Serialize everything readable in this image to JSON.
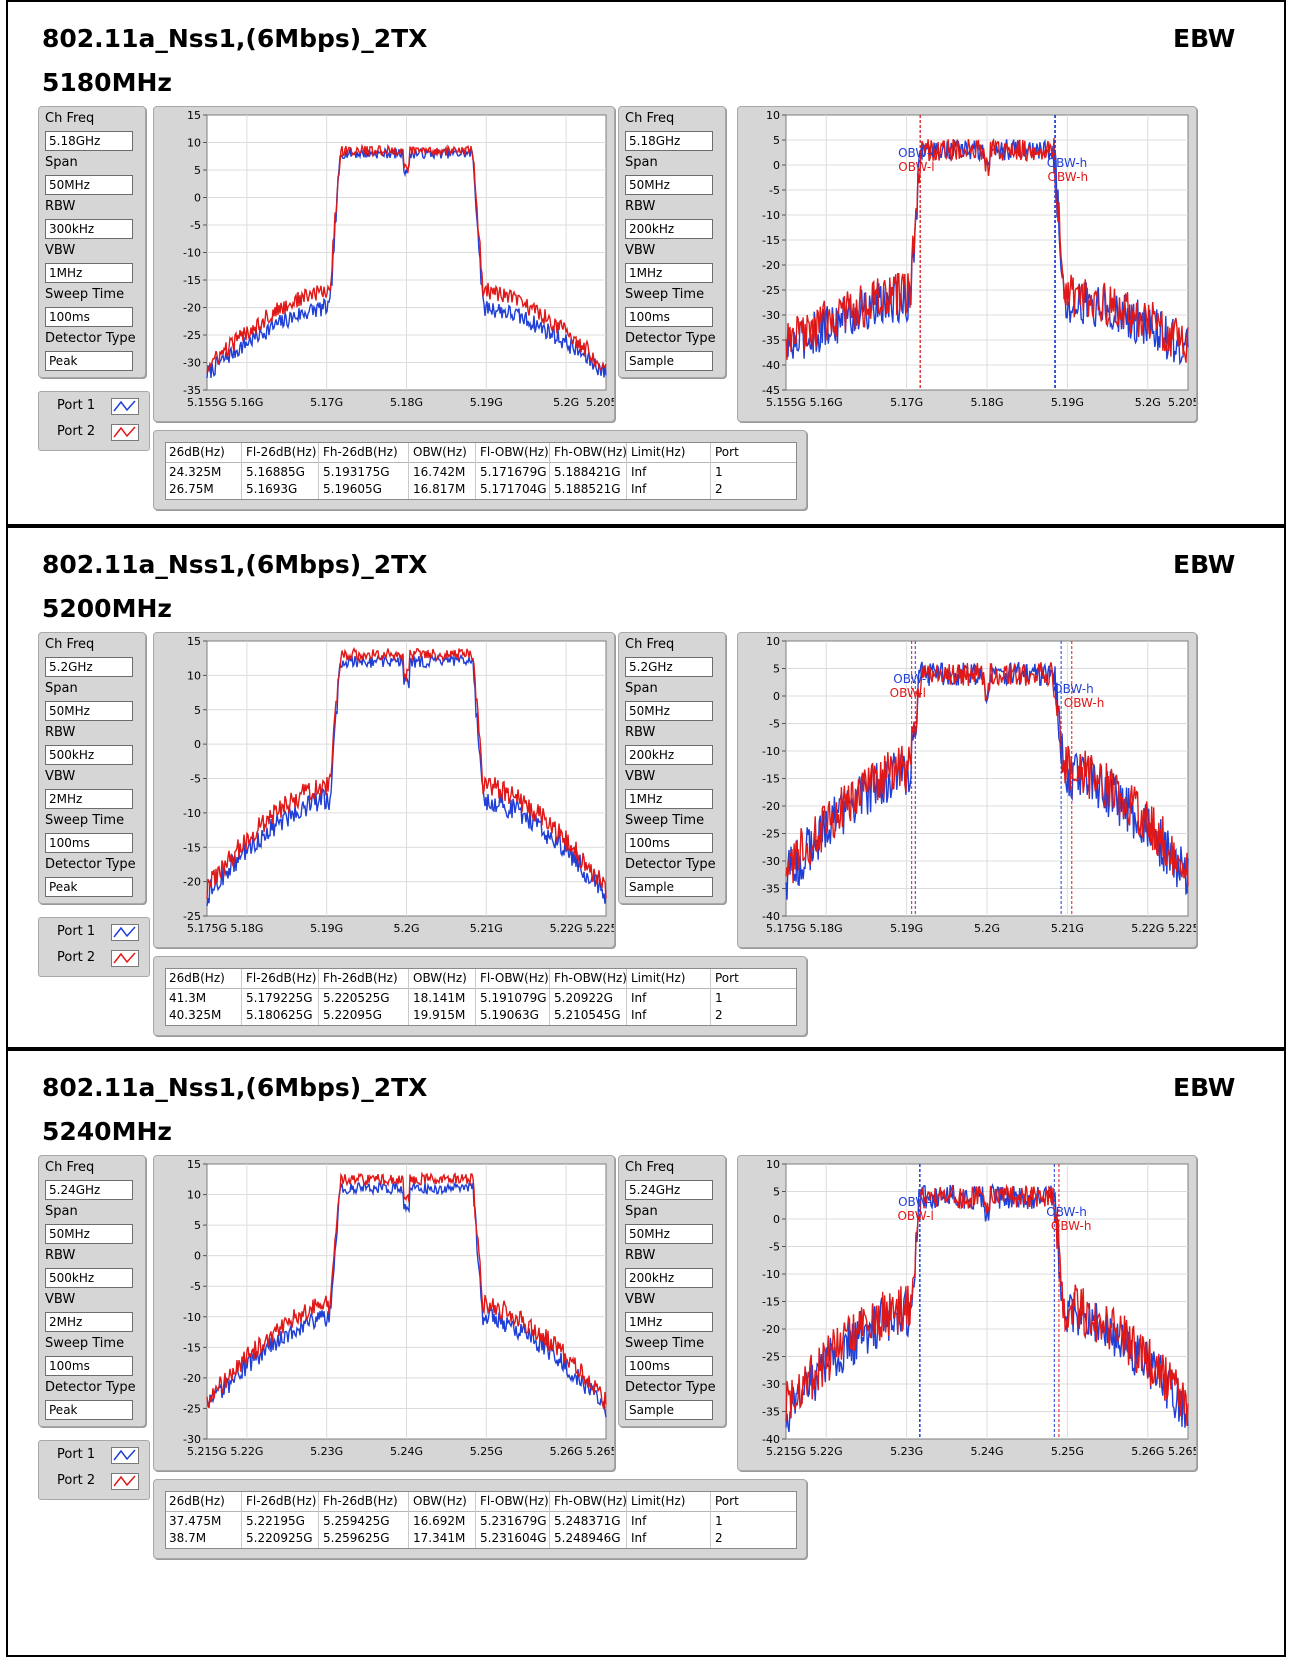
{
  "ebw_label": "EBW",
  "legend": [
    {
      "label": "Port 1",
      "color": "#1f3fd6"
    },
    {
      "label": "Port 2",
      "color": "#e01818"
    }
  ],
  "table_headers": [
    "26dB(Hz)",
    "Fl-26dB(Hz)",
    "Fh-26dB(Hz)",
    "OBW(Hz)",
    "Fl-OBW(Hz)",
    "Fh-OBW(Hz)",
    "Limit(Hz)",
    "Port"
  ],
  "sections": [
    {
      "title": "802.11a_Nss1,(6Mbps)_2TX",
      "freq": "5180MHz",
      "left_settings": [
        {
          "label": "Ch Freq",
          "value": "5.18GHz"
        },
        {
          "label": "Span",
          "value": "50MHz"
        },
        {
          "label": "RBW",
          "value": "300kHz"
        },
        {
          "label": "VBW",
          "value": "1MHz"
        },
        {
          "label": "Sweep Time",
          "value": "100ms"
        },
        {
          "label": "Detector Type",
          "value": "Peak"
        }
      ],
      "right_settings": [
        {
          "label": "Ch Freq",
          "value": "5.18GHz"
        },
        {
          "label": "Span",
          "value": "50MHz"
        },
        {
          "label": "RBW",
          "value": "200kHz"
        },
        {
          "label": "VBW",
          "value": "1MHz"
        },
        {
          "label": "Sweep Time",
          "value": "100ms"
        },
        {
          "label": "Detector Type",
          "value": "Sample"
        }
      ],
      "table_rows": [
        [
          "24.325M",
          "5.16885G",
          "5.193175G",
          "16.742M",
          "5.171679G",
          "5.188421G",
          "Inf",
          "1"
        ],
        [
          "26.75M",
          "5.1693G",
          "5.19605G",
          "16.817M",
          "5.171704G",
          "5.188521G",
          "Inf",
          "2"
        ]
      ]
    },
    {
      "title": "802.11a_Nss1,(6Mbps)_2TX",
      "freq": "5200MHz",
      "left_settings": [
        {
          "label": "Ch Freq",
          "value": "5.2GHz"
        },
        {
          "label": "Span",
          "value": "50MHz"
        },
        {
          "label": "RBW",
          "value": "500kHz"
        },
        {
          "label": "VBW",
          "value": "2MHz"
        },
        {
          "label": "Sweep Time",
          "value": "100ms"
        },
        {
          "label": "Detector Type",
          "value": "Peak"
        }
      ],
      "right_settings": [
        {
          "label": "Ch Freq",
          "value": "5.2GHz"
        },
        {
          "label": "Span",
          "value": "50MHz"
        },
        {
          "label": "RBW",
          "value": "200kHz"
        },
        {
          "label": "VBW",
          "value": "1MHz"
        },
        {
          "label": "Sweep Time",
          "value": "100ms"
        },
        {
          "label": "Detector Type",
          "value": "Sample"
        }
      ],
      "table_rows": [
        [
          "41.3M",
          "5.179225G",
          "5.220525G",
          "18.141M",
          "5.191079G",
          "5.20922G",
          "Inf",
          "1"
        ],
        [
          "40.325M",
          "5.180625G",
          "5.22095G",
          "19.915M",
          "5.19063G",
          "5.210545G",
          "Inf",
          "2"
        ]
      ]
    },
    {
      "title": "802.11a_Nss1,(6Mbps)_2TX",
      "freq": "5240MHz",
      "left_settings": [
        {
          "label": "Ch Freq",
          "value": "5.24GHz"
        },
        {
          "label": "Span",
          "value": "50MHz"
        },
        {
          "label": "RBW",
          "value": "500kHz"
        },
        {
          "label": "VBW",
          "value": "2MHz"
        },
        {
          "label": "Sweep Time",
          "value": "100ms"
        },
        {
          "label": "Detector Type",
          "value": "Peak"
        }
      ],
      "right_settings": [
        {
          "label": "Ch Freq",
          "value": "5.24GHz"
        },
        {
          "label": "Span",
          "value": "50MHz"
        },
        {
          "label": "RBW",
          "value": "200kHz"
        },
        {
          "label": "VBW",
          "value": "1MHz"
        },
        {
          "label": "Sweep Time",
          "value": "100ms"
        },
        {
          "label": "Detector Type",
          "value": "Sample"
        }
      ],
      "table_rows": [
        [
          "37.475M",
          "5.22195G",
          "5.259425G",
          "16.692M",
          "5.231679G",
          "5.248371G",
          "Inf",
          "1"
        ],
        [
          "38.7M",
          "5.220925G",
          "5.259625G",
          "17.341M",
          "5.231604G",
          "5.248946G",
          "Inf",
          "2"
        ]
      ]
    }
  ],
  "chart_data": [
    {
      "type": "line",
      "chart": "26dB",
      "center_ghz": 5.18,
      "x_range": [
        5.155,
        5.205
      ],
      "x_ticks": [
        "5.155G",
        "5.16G",
        "5.17G",
        "5.18G",
        "5.19G",
        "5.2G",
        "5.205G"
      ],
      "ylim": [
        -35,
        15
      ],
      "y_ticks": [
        15,
        10,
        5,
        0,
        -5,
        -10,
        -15,
        -20,
        -25,
        -30,
        -35
      ],
      "series": [
        {
          "name": "Port 1",
          "plateau": 8,
          "edge": -20,
          "skirt": -32
        },
        {
          "name": "Port 2",
          "plateau": 8.5,
          "edge": -17,
          "skirt": -31
        }
      ]
    },
    {
      "type": "line",
      "chart": "OBW",
      "center_ghz": 5.18,
      "x_range": [
        5.155,
        5.205
      ],
      "x_ticks": [
        "5.155G",
        "5.16G",
        "5.17G",
        "5.18G",
        "5.19G",
        "5.2G",
        "5.205G"
      ],
      "ylim": [
        -45,
        10
      ],
      "y_ticks": [
        10,
        5,
        0,
        -5,
        -10,
        -15,
        -20,
        -25,
        -30,
        -35,
        -40,
        -45
      ],
      "markers": {
        "Port 1": [
          5.171679,
          5.188421
        ],
        "Port 2": [
          5.171704,
          5.188521
        ]
      },
      "marker_labels": [
        "OBW-l",
        "OBW-h"
      ],
      "series": [
        {
          "name": "Port 1",
          "plateau": 3,
          "edge": -27,
          "skirt": -37
        },
        {
          "name": "Port 2",
          "plateau": 3,
          "edge": -26,
          "skirt": -36
        }
      ]
    },
    {
      "type": "line",
      "chart": "26dB",
      "center_ghz": 5.2,
      "x_range": [
        5.175,
        5.225
      ],
      "x_ticks": [
        "5.175G",
        "5.18G",
        "5.19G",
        "5.2G",
        "5.21G",
        "5.22G",
        "5.225G"
      ],
      "ylim": [
        -25,
        15
      ],
      "y_ticks": [
        15,
        10,
        5,
        0,
        -5,
        -10,
        -15,
        -20,
        -25
      ],
      "series": [
        {
          "name": "Port 1",
          "plateau": 12,
          "edge": -8,
          "skirt": -22
        },
        {
          "name": "Port 2",
          "plateau": 13,
          "edge": -6,
          "skirt": -21
        }
      ]
    },
    {
      "type": "line",
      "chart": "OBW",
      "center_ghz": 5.2,
      "x_range": [
        5.175,
        5.225
      ],
      "x_ticks": [
        "5.175G",
        "5.18G",
        "5.19G",
        "5.2G",
        "5.21G",
        "5.22G",
        "5.225G"
      ],
      "ylim": [
        -40,
        10
      ],
      "y_ticks": [
        10,
        5,
        0,
        -5,
        -10,
        -15,
        -20,
        -25,
        -30,
        -35,
        -40
      ],
      "markers": {
        "Port 1": [
          5.191079,
          5.20922
        ],
        "Port 2": [
          5.19063,
          5.210545
        ]
      },
      "marker_labels": [
        "OBW-l",
        "OBW-h"
      ],
      "series": [
        {
          "name": "Port 1",
          "plateau": 4,
          "edge": -14,
          "skirt": -33
        },
        {
          "name": "Port 2",
          "plateau": 4,
          "edge": -13,
          "skirt": -32
        }
      ]
    },
    {
      "type": "line",
      "chart": "26dB",
      "center_ghz": 5.24,
      "x_range": [
        5.215,
        5.265
      ],
      "x_ticks": [
        "5.215G",
        "5.22G",
        "5.23G",
        "5.24G",
        "5.25G",
        "5.26G",
        "5.265G"
      ],
      "ylim": [
        -30,
        15
      ],
      "y_ticks": [
        15,
        10,
        5,
        0,
        -5,
        -10,
        -15,
        -20,
        -25,
        -30
      ],
      "series": [
        {
          "name": "Port 1",
          "plateau": 11,
          "edge": -10,
          "skirt": -25
        },
        {
          "name": "Port 2",
          "plateau": 12.5,
          "edge": -8,
          "skirt": -24
        }
      ]
    },
    {
      "type": "line",
      "chart": "OBW",
      "center_ghz": 5.24,
      "x_range": [
        5.215,
        5.265
      ],
      "x_ticks": [
        "5.215G",
        "5.22G",
        "5.23G",
        "5.24G",
        "5.25G",
        "5.26G",
        "5.265G"
      ],
      "ylim": [
        -40,
        10
      ],
      "y_ticks": [
        10,
        5,
        0,
        -5,
        -10,
        -15,
        -20,
        -25,
        -30,
        -35,
        -40
      ],
      "markers": {
        "Port 1": [
          5.231679,
          5.248371
        ],
        "Port 2": [
          5.231604,
          5.248946
        ]
      },
      "marker_labels": [
        "OBW-l",
        "OBW-h"
      ],
      "series": [
        {
          "name": "Port 1",
          "plateau": 4,
          "edge": -17,
          "skirt": -35
        },
        {
          "name": "Port 2",
          "plateau": 4,
          "edge": -16,
          "skirt": -34
        }
      ]
    }
  ]
}
